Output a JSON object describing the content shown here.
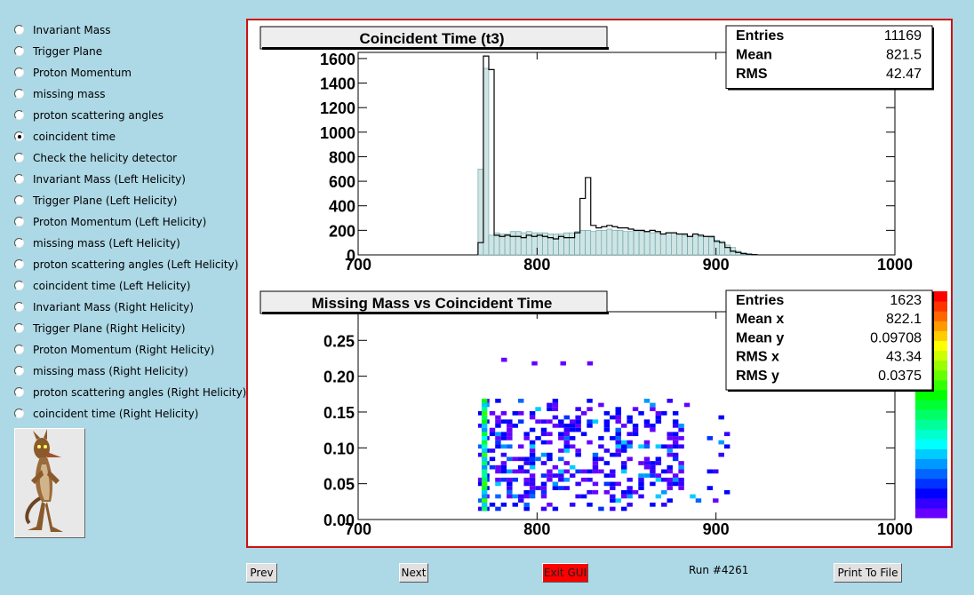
{
  "menu": {
    "items": [
      {
        "label": "Invariant Mass",
        "selected": false
      },
      {
        "label": "Trigger Plane",
        "selected": false
      },
      {
        "label": "Proton Momentum",
        "selected": false
      },
      {
        "label": "missing mass",
        "selected": false
      },
      {
        "label": "proton scattering angles",
        "selected": false
      },
      {
        "label": "coincident time",
        "selected": true
      },
      {
        "label": "Check the helicity detector",
        "selected": false
      },
      {
        "label": "Invariant Mass (Left Helicity)",
        "selected": false
      },
      {
        "label": "Trigger Plane (Left Helicity)",
        "selected": false
      },
      {
        "label": "Proton Momentum (Left Helicity)",
        "selected": false
      },
      {
        "label": "missing mass (Left Helicity)",
        "selected": false
      },
      {
        "label": "proton scattering angles (Left Helicity)",
        "selected": false
      },
      {
        "label": "coincident time (Left Helicity)",
        "selected": false
      },
      {
        "label": "Invariant Mass (Right Helicity)",
        "selected": false
      },
      {
        "label": "Trigger Plane (Right Helicity)",
        "selected": false
      },
      {
        "label": "Proton Momentum (Right Helicity)",
        "selected": false
      },
      {
        "label": "missing mass (Right Helicity)",
        "selected": false
      },
      {
        "label": "proton scattering angles (Right Helicity)",
        "selected": false
      },
      {
        "label": "coincident time (Right Helicity)",
        "selected": false
      }
    ]
  },
  "buttons": {
    "prev": "Prev",
    "next": "Next",
    "exit": "Exit GUI",
    "print": "Print To File"
  },
  "run_label": "Run #4261",
  "colors": {
    "background": "#add8e6",
    "canvas_border": "#d01010",
    "exit_button": "#ff0000"
  },
  "chart_data": [
    {
      "type": "bar",
      "title": "Coincident Time (t3)",
      "xlabel": "",
      "ylabel": "",
      "xlim": [
        700,
        1000
      ],
      "ylim": [
        0,
        1650
      ],
      "xticks": [
        "700",
        "800",
        "900",
        "1000"
      ],
      "yticks": [
        "0",
        "200",
        "400",
        "600",
        "800",
        "1000",
        "1200",
        "1400",
        "1600"
      ],
      "stats": [
        {
          "label": "Entries",
          "value": "11169"
        },
        {
          "label": "Mean",
          "value": "821.5"
        },
        {
          "label": "RMS",
          "value": "42.47"
        }
      ],
      "bin_width": 3,
      "series": [
        {
          "style": "outline",
          "color": "#000000",
          "x": [
            767,
            770,
            773,
            776,
            779,
            782,
            785,
            788,
            791,
            794,
            797,
            800,
            803,
            806,
            809,
            812,
            815,
            818,
            821,
            824,
            827,
            830,
            833,
            836,
            839,
            842,
            845,
            848,
            851,
            854,
            857,
            860,
            863,
            866,
            869,
            872,
            875,
            878,
            881,
            884,
            887,
            890,
            893,
            896,
            899,
            902,
            905,
            908,
            911,
            914,
            917,
            920
          ],
          "values": [
            100,
            1620,
            1510,
            160,
            150,
            160,
            150,
            150,
            140,
            160,
            150,
            160,
            150,
            140,
            130,
            150,
            140,
            140,
            180,
            460,
            630,
            240,
            220,
            230,
            240,
            230,
            220,
            220,
            210,
            200,
            200,
            190,
            200,
            190,
            170,
            180,
            180,
            170,
            170,
            150,
            170,
            160,
            150,
            150,
            110,
            100,
            60,
            30,
            20,
            10,
            5,
            2
          ]
        },
        {
          "style": "filled",
          "color": "#5f9ea0",
          "x": [
            767,
            770,
            773,
            776,
            779,
            782,
            785,
            788,
            791,
            794,
            797,
            800,
            803,
            806,
            809,
            812,
            815,
            818,
            821,
            824,
            827,
            830,
            833,
            836,
            839,
            842,
            845,
            848,
            851,
            854,
            857,
            860,
            863,
            866,
            869,
            872,
            875,
            878,
            881,
            884,
            887,
            890,
            893,
            896,
            899,
            902,
            905,
            908,
            911,
            914,
            917,
            920
          ],
          "values": [
            700,
            1520,
            160,
            180,
            170,
            170,
            190,
            190,
            180,
            190,
            180,
            180,
            180,
            170,
            170,
            170,
            180,
            180,
            190,
            200,
            200,
            190,
            200,
            200,
            210,
            200,
            200,
            190,
            190,
            190,
            190,
            190,
            180,
            180,
            170,
            180,
            180,
            170,
            160,
            150,
            170,
            150,
            150,
            140,
            120,
            110,
            80,
            60,
            30,
            20,
            10,
            5
          ]
        }
      ]
    },
    {
      "type": "heatmap",
      "title": "Missing Mass vs Coincident Time",
      "xlabel": "",
      "ylabel": "",
      "xlim": [
        700,
        1000
      ],
      "ylim": [
        0,
        0.29
      ],
      "xticks": [
        "700",
        "800",
        "900",
        "1000"
      ],
      "yticks": [
        "0.00",
        "0.05",
        "0.10",
        "0.15",
        "0.20",
        "0.25"
      ],
      "stats": [
        {
          "label": "Entries",
          "value": "1623"
        },
        {
          "label": "Mean x",
          "value": "822.1"
        },
        {
          "label": "Mean y",
          "value": "0.09708"
        },
        {
          "label": "RMS x",
          "value": "43.34"
        },
        {
          "label": "RMS y",
          "value": "0.0375"
        }
      ],
      "palette": [
        "#6600ff",
        "#3300ff",
        "#0000ff",
        "#0033ff",
        "#0066ff",
        "#0099ff",
        "#00ccff",
        "#00ffff",
        "#00ffcc",
        "#00ff99",
        "#00ff66",
        "#00ff33",
        "#00ff00",
        "#33ff00",
        "#66ff00",
        "#99ff00",
        "#ccff00",
        "#ffff00",
        "#ffcc00",
        "#ff9900",
        "#ff6600",
        "#ff3300",
        "#ff0000"
      ],
      "x_range": [
        767,
        905
      ],
      "y_range": [
        0.012,
        0.165
      ],
      "cell_size": [
        3.2,
        0.0058
      ],
      "outliers": [
        [
          780,
          0.22
        ],
        [
          797,
          0.215
        ],
        [
          813,
          0.215
        ],
        [
          828,
          0.215
        ]
      ],
      "vertical_streak_x": 769
    }
  ]
}
